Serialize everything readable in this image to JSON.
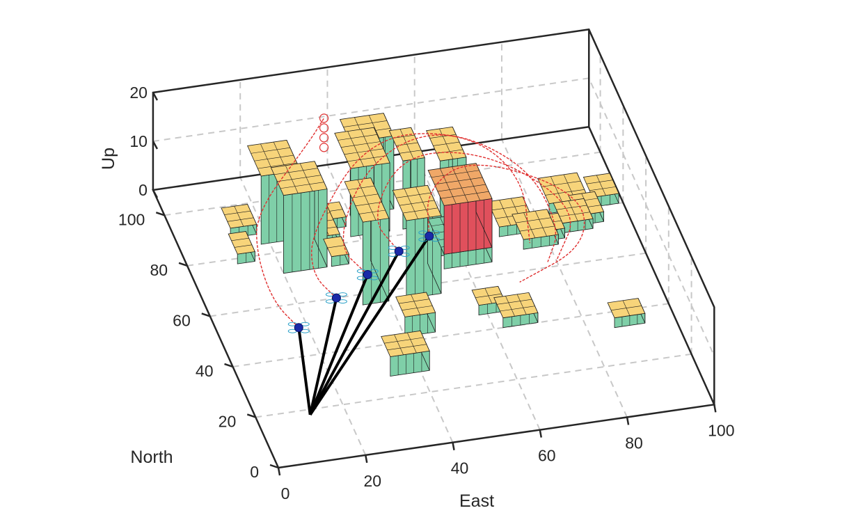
{
  "chart_data": {
    "type": "3d-scene",
    "x_axis": {
      "label": "East",
      "ticks": [
        0,
        20,
        40,
        60,
        80,
        100
      ],
      "range": [
        0,
        100
      ]
    },
    "y_axis": {
      "label": "North",
      "ticks": [
        0,
        20,
        40,
        60,
        80,
        100
      ],
      "range": [
        0,
        110
      ]
    },
    "z_axis": {
      "label": "Up",
      "ticks": [
        0,
        10,
        20
      ],
      "range": [
        0,
        20
      ]
    },
    "grid": true,
    "colors": {
      "building_side": "#7fcfa8",
      "building_top": "#f7d47a",
      "highlight_side": "#e0505c",
      "highlight_top": "#f0a868",
      "trajectory": "#e03030",
      "link": "#000000",
      "drone": "#1a2aa8",
      "grid": "#c8c8c8",
      "box": "#262626"
    },
    "buildings": [
      {
        "x": [
          12,
          18
        ],
        "y": [
          88,
          96
        ],
        "h": 2
      },
      {
        "x": [
          11,
          15
        ],
        "y": [
          78,
          86
        ],
        "h": 2
      },
      {
        "x": [
          18,
          27
        ],
        "y": [
          84,
          96
        ],
        "h": 14
      },
      {
        "x": [
          20,
          30
        ],
        "y": [
          72,
          83
        ],
        "h": 16
      },
      {
        "x": [
          30,
          35
        ],
        "y": [
          80,
          94
        ],
        "h": 2
      },
      {
        "x": [
          31,
          35
        ],
        "y": [
          72,
          79
        ],
        "h": 2
      },
      {
        "x": [
          34,
          38
        ],
        "y": [
          86,
          92
        ],
        "h": 2
      },
      {
        "x": [
          38,
          47
        ],
        "y": [
          82,
          96
        ],
        "h": 14
      },
      {
        "x": [
          40,
          50
        ],
        "y": [
          90,
          99
        ],
        "h": 15
      },
      {
        "x": [
          34,
          40
        ],
        "y": [
          56,
          72
        ],
        "h": 17
      },
      {
        "x": [
          44,
          52
        ],
        "y": [
          56,
          68
        ],
        "h": 16
      },
      {
        "x": [
          50,
          55
        ],
        "y": [
          82,
          94
        ],
        "h": 14
      },
      {
        "x": [
          49,
          52
        ],
        "y": [
          62,
          66
        ],
        "h": 1
      },
      {
        "x": [
          53,
          58
        ],
        "y": [
          70,
          76
        ],
        "h": 2
      },
      {
        "x": [
          58,
          64
        ],
        "y": [
          80,
          92
        ],
        "h": 14
      },
      {
        "x": [
          70,
          78
        ],
        "y": [
          74,
          84
        ],
        "h": 2
      },
      {
        "x": [
          74,
          82
        ],
        "y": [
          68,
          78
        ],
        "h": 2
      },
      {
        "x": [
          77,
          84
        ],
        "y": [
          70,
          76
        ],
        "h": 2
      },
      {
        "x": [
          83,
          92
        ],
        "y": [
          80,
          90
        ],
        "h": 2
      },
      {
        "x": [
          84,
          91
        ],
        "y": [
          72,
          80
        ],
        "h": 2
      },
      {
        "x": [
          88,
          94
        ],
        "y": [
          74,
          82
        ],
        "h": 2
      },
      {
        "x": [
          93,
          99
        ],
        "y": [
          80,
          88
        ],
        "h": 2
      },
      {
        "x": [
          58,
          64
        ],
        "y": [
          46,
          52
        ],
        "h": 2
      },
      {
        "x": [
          62,
          70
        ],
        "y": [
          40,
          48
        ],
        "h": 2
      },
      {
        "x": [
          33,
          42
        ],
        "y": [
          28,
          36
        ],
        "h": 4
      },
      {
        "x": [
          40,
          47
        ],
        "y": [
          42,
          50
        ],
        "h": 4
      },
      {
        "x": [
          86,
          93
        ],
        "y": [
          34,
          40
        ],
        "h": 2
      }
    ],
    "highlighted_building": {
      "x": [
        55,
        66
      ],
      "y": [
        65,
        79
      ],
      "h": 10,
      "base_h": 3
    },
    "ground_station": {
      "x": 12,
      "y": 18,
      "z": 0
    },
    "drones": [
      {
        "x": 18,
        "y": 51,
        "z": 0
      },
      {
        "x": 29,
        "y": 60,
        "z": 0
      },
      {
        "x": 38,
        "y": 67,
        "z": 0
      },
      {
        "x": 47,
        "y": 74,
        "z": 0
      },
      {
        "x": 55,
        "y": 78,
        "z": 0
      }
    ],
    "trajectory_markers": [
      {
        "x": 40,
        "y": 113,
        "z": 8
      },
      {
        "x": 40,
        "y": 113,
        "z": 6
      },
      {
        "x": 40,
        "y": 113,
        "z": 4
      },
      {
        "x": 40,
        "y": 113,
        "z": 2
      }
    ]
  }
}
